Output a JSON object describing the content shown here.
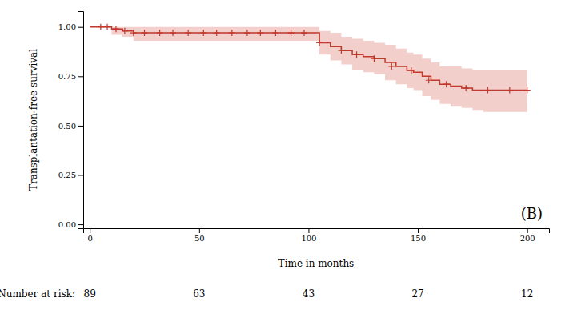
{
  "chart_data": {
    "type": "step",
    "ylabel": "Transplantation-free survival",
    "xlabel": "Time in months",
    "annotations": [
      "(B)"
    ],
    "xlim": [
      -3,
      210
    ],
    "ylim": [
      -0.02,
      1.08
    ],
    "xticks": [
      0,
      50,
      100,
      150,
      200
    ],
    "yticks": [
      {
        "value": 0.0,
        "label": "0.00"
      },
      0.25,
      {
        "value": 0.5,
        "label": "0.50"
      },
      0.75,
      {
        "value": 1.0,
        "label": "1.00"
      }
    ],
    "grid": false,
    "x": [
      0,
      5,
      10,
      15,
      20,
      25,
      30,
      40,
      50,
      60,
      70,
      80,
      90,
      100,
      105,
      110,
      115,
      120,
      125,
      130,
      135,
      140,
      145,
      148,
      152,
      156,
      160,
      165,
      170,
      175,
      180,
      185,
      190,
      195,
      200
    ],
    "series": [
      {
        "type": "band",
        "color": "#e8a09a",
        "lower": [
          1.0,
          1.0,
          0.96,
          0.95,
          0.93,
          0.93,
          0.93,
          0.93,
          0.93,
          0.93,
          0.93,
          0.93,
          0.93,
          0.93,
          0.86,
          0.83,
          0.81,
          0.78,
          0.77,
          0.76,
          0.73,
          0.71,
          0.69,
          0.68,
          0.65,
          0.63,
          0.61,
          0.6,
          0.59,
          0.58,
          0.57,
          0.57,
          0.57,
          0.57,
          0.57
        ],
        "upper": [
          1.0,
          1.0,
          1.0,
          1.0,
          1.0,
          1.0,
          1.0,
          1.0,
          1.0,
          1.0,
          1.0,
          1.0,
          1.0,
          1.0,
          0.98,
          0.97,
          0.95,
          0.94,
          0.93,
          0.92,
          0.91,
          0.89,
          0.87,
          0.86,
          0.84,
          0.82,
          0.8,
          0.8,
          0.79,
          0.78,
          0.78,
          0.78,
          0.78,
          0.78,
          0.78
        ]
      },
      {
        "type": "step",
        "color": "#c0392b",
        "values": [
          1.0,
          1.0,
          0.99,
          0.98,
          0.97,
          0.97,
          0.97,
          0.97,
          0.97,
          0.97,
          0.97,
          0.97,
          0.97,
          0.97,
          0.92,
          0.9,
          0.88,
          0.86,
          0.85,
          0.84,
          0.82,
          0.8,
          0.78,
          0.77,
          0.75,
          0.73,
          0.71,
          0.7,
          0.69,
          0.68,
          0.68,
          0.68,
          0.68,
          0.68,
          0.68
        ]
      },
      {
        "type": "scatter",
        "marker": "plus",
        "color": "#c0392b",
        "x": [
          5,
          8,
          12,
          16,
          20,
          25,
          32,
          38,
          45,
          52,
          58,
          65,
          72,
          78,
          85,
          92,
          98,
          105,
          115,
          122,
          130,
          138,
          147,
          155,
          163,
          172,
          182,
          192,
          200
        ],
        "values": [
          1.0,
          1.0,
          0.99,
          0.98,
          0.97,
          0.97,
          0.97,
          0.97,
          0.97,
          0.97,
          0.97,
          0.97,
          0.97,
          0.97,
          0.97,
          0.97,
          0.97,
          0.92,
          0.88,
          0.86,
          0.84,
          0.8,
          0.78,
          0.73,
          0.71,
          0.69,
          0.68,
          0.68,
          0.68
        ]
      }
    ],
    "at_risk": {
      "label": "Number at risk:",
      "x": [
        0,
        50,
        100,
        150,
        200
      ],
      "values": [
        89,
        63,
        43,
        27,
        12
      ]
    }
  }
}
